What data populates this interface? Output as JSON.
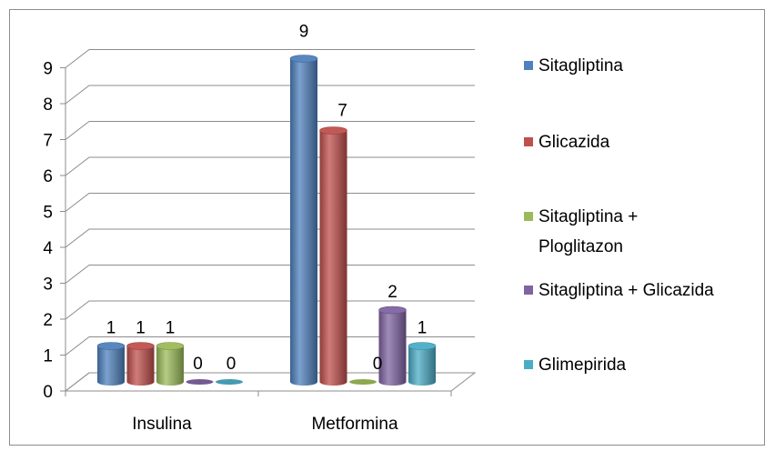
{
  "chart_data": {
    "type": "bar",
    "style": "3d-cylinder",
    "title": "",
    "xlabel": "",
    "ylabel": "",
    "categories": [
      "Insulina",
      "Metformina"
    ],
    "ylim": [
      0,
      9
    ],
    "yticks": [
      "0",
      "1",
      "2",
      "3",
      "4",
      "5",
      "6",
      "7",
      "8",
      "9"
    ],
    "grid": true,
    "legend_position": "right",
    "series": [
      {
        "name": "Sitagliptina",
        "values": [
          1,
          9
        ],
        "color": "#4f81bd",
        "labels": [
          "1",
          "9"
        ]
      },
      {
        "name": "Glicazida",
        "values": [
          1,
          7
        ],
        "color": "#c0504d",
        "labels": [
          "1",
          "7"
        ]
      },
      {
        "name": "Sitagliptina + Ploglitazon",
        "legend_lines": [
          "Sitagliptina +",
          "Ploglitazon"
        ],
        "values": [
          1,
          0
        ],
        "color": "#9bbb59",
        "labels": [
          "1",
          "0"
        ]
      },
      {
        "name": "Sitagliptina + Glicazida",
        "values": [
          0,
          2
        ],
        "color": "#8064a2",
        "labels": [
          "0",
          "2"
        ]
      },
      {
        "name": "Glimepirida",
        "values": [
          0,
          1
        ],
        "color": "#4bacc6",
        "labels": [
          "0",
          "1"
        ]
      }
    ]
  }
}
